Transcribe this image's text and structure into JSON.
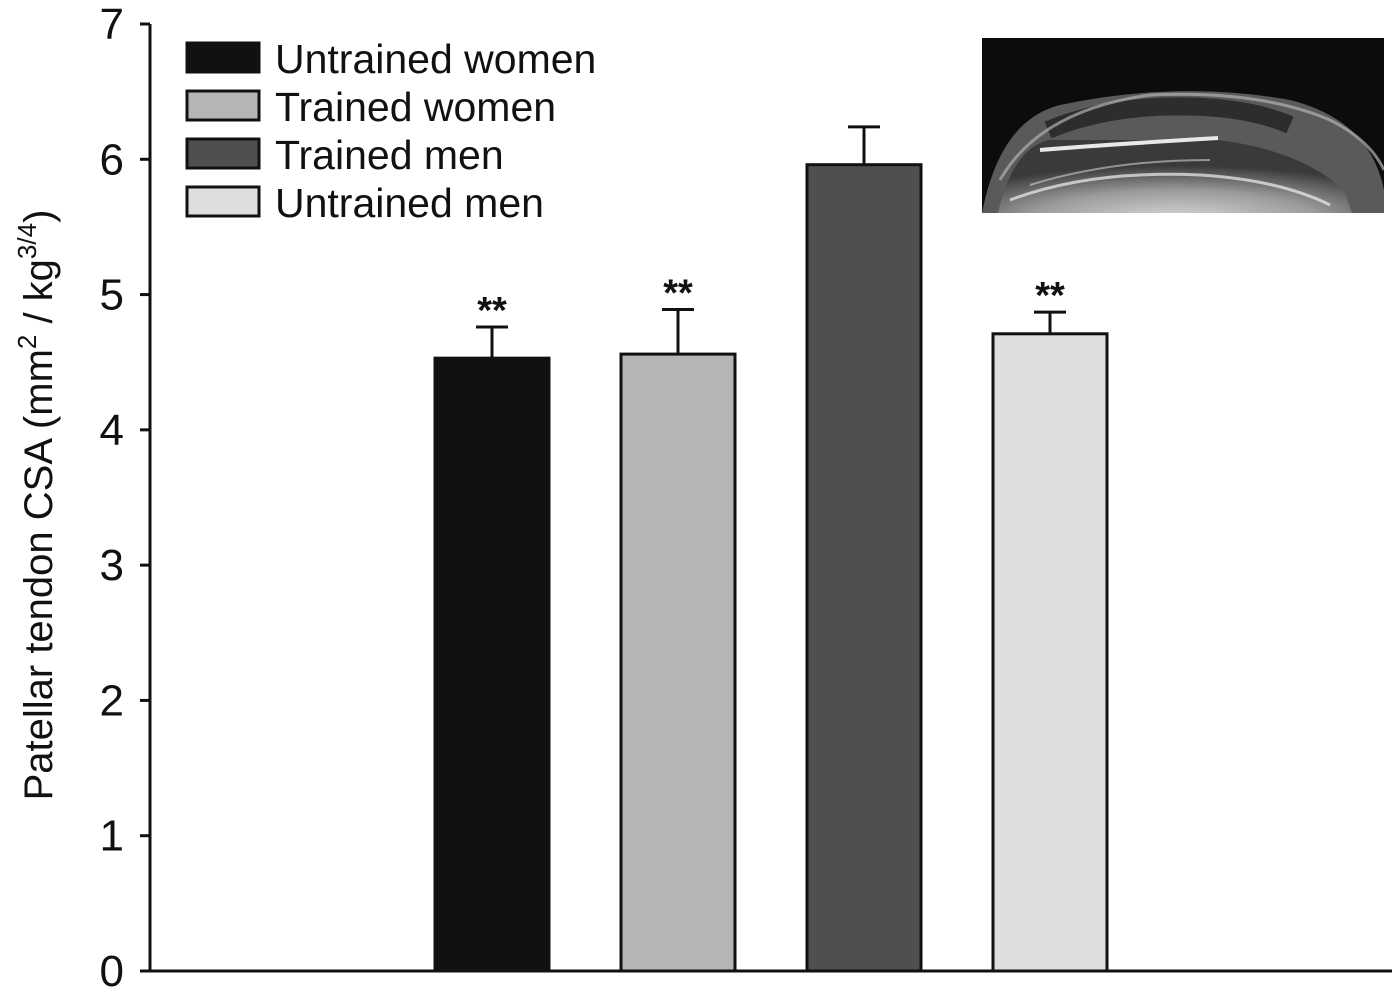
{
  "chart_data": {
    "type": "bar",
    "title": "",
    "ylabel": "Patellar tendon CSA (mm",
    "ylabel_sup1": "2",
    "ylabel_mid": " / kg",
    "ylabel_sup2": "3/4",
    "ylabel_end": ")",
    "ylim": [
      0,
      7
    ],
    "yticks": [
      "0",
      "1",
      "2",
      "3",
      "4",
      "5",
      "6",
      "7"
    ],
    "legend_position": "top-left",
    "series": [
      {
        "name": "Untrained women",
        "value": 4.53,
        "error": 0.23,
        "color": "#111111",
        "annotation": "**"
      },
      {
        "name": "Trained women",
        "value": 4.56,
        "error": 0.33,
        "color": "#b5b5b5",
        "annotation": "**"
      },
      {
        "name": "Trained men",
        "value": 5.96,
        "error": 0.28,
        "color": "#4f4f4f",
        "annotation": ""
      },
      {
        "name": "Untrained men",
        "value": 4.71,
        "error": 0.16,
        "color": "#dedede",
        "annotation": "**"
      }
    ],
    "inset": {
      "description_icon": "ultrasound-image"
    }
  }
}
